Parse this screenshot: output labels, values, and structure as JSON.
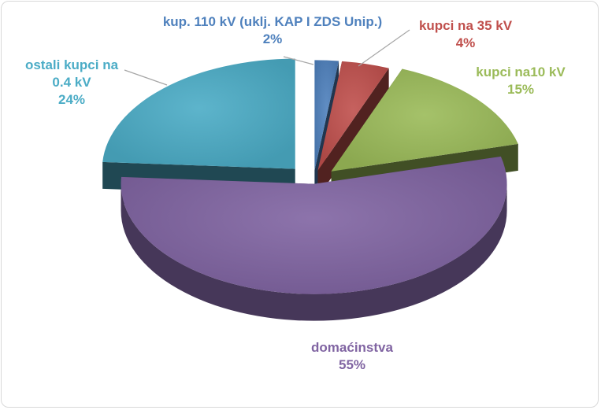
{
  "chart_data": {
    "type": "pie",
    "style": "3d-exploded",
    "categories": [
      "kup. 110 kV (uklj. KAP I ZDS Unip.)",
      "kupci na 35 kV",
      "kupci na10 kV",
      "domaćinstva",
      "ostali kupci na 0.4 kV"
    ],
    "values": [
      2,
      4,
      15,
      55,
      24
    ],
    "unit": "%",
    "colors": [
      "#4f81bd",
      "#c0504d",
      "#9bbb59",
      "#8064a2",
      "#4bacc6"
    ],
    "labels": [
      {
        "lines": [
          "kup. 110 kV (uklj. KAP I ZDS Unip.)"
        ],
        "pct": "2%"
      },
      {
        "lines": [
          "kupci na 35 kV"
        ],
        "pct": "4%"
      },
      {
        "lines": [
          "kupci na10 kV"
        ],
        "pct": "15%"
      },
      {
        "lines": [
          "domaćinstva"
        ],
        "pct": "55%"
      },
      {
        "lines": [
          "ostali kupci na",
          "0.4 kV"
        ],
        "pct": "24%"
      }
    ],
    "legend": "none",
    "title": ""
  }
}
